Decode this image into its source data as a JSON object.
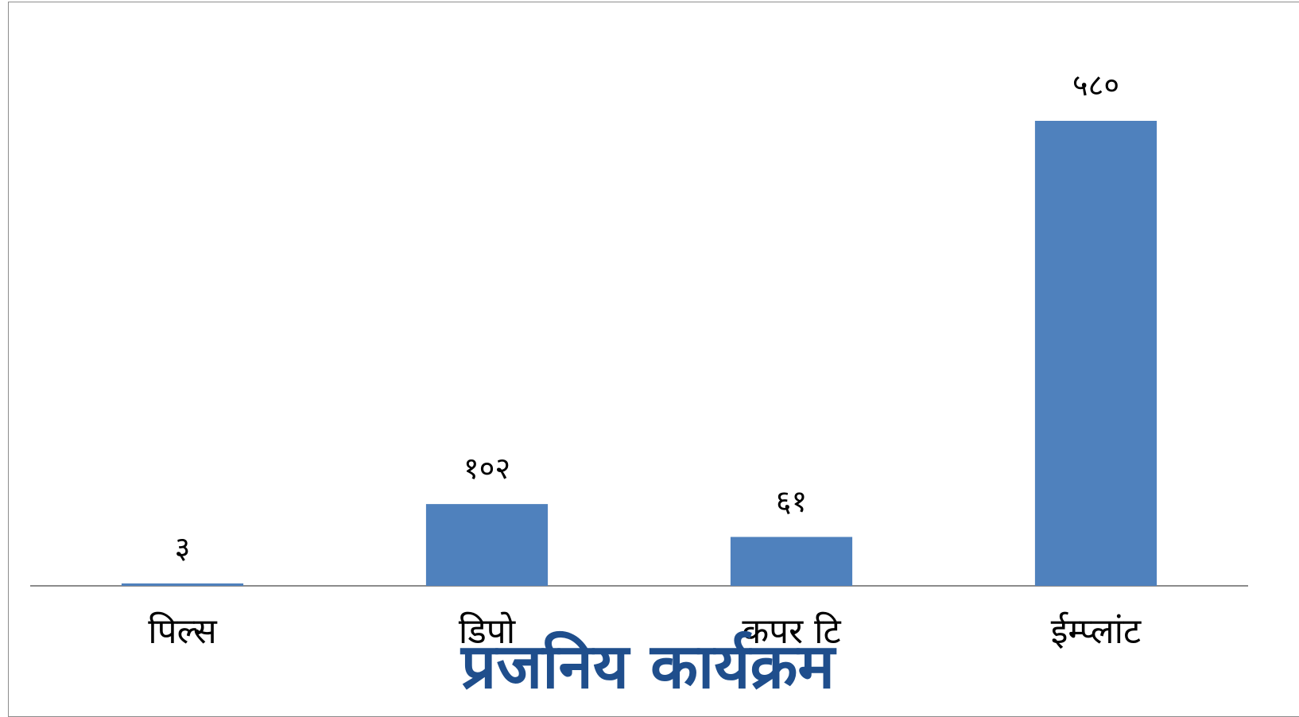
{
  "chart_data": {
    "type": "bar",
    "categories": [
      "पिल्स",
      "डिपो",
      "कपर टि",
      "ईम्प्लांट"
    ],
    "values": [
      3,
      102,
      61,
      580
    ],
    "value_labels": [
      "३",
      "१०२",
      "६१",
      "५८०"
    ],
    "title": "",
    "xlabel": "",
    "ylabel": "",
    "ylim": [
      0,
      580
    ],
    "grid": false,
    "legend": "none",
    "bar_color": "#4f81bd",
    "axis_color": "#8c8c8c"
  },
  "footer": {
    "title_partial": "प्रजनिय कार्यक्रम",
    "title_color": "#1f4e8c"
  }
}
